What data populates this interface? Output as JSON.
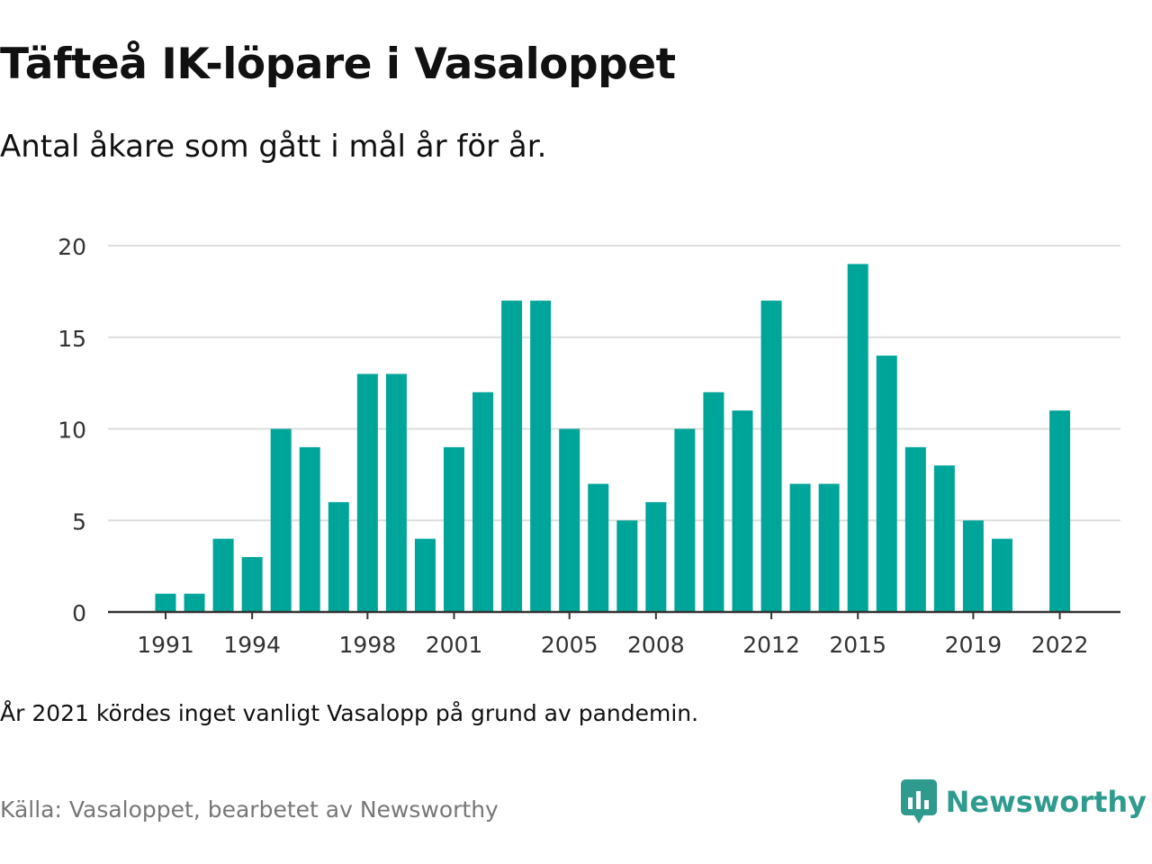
{
  "title": "Täfteå IK-löpare i Vasaloppet",
  "subtitle": "Antal åkare som gått i mål år för år.",
  "note": "År 2021 kördes inget vanligt Vasalopp på grund av pandemin.",
  "source": "Källa: Vasaloppet, bearbetet av Newsworthy",
  "brand": {
    "name": "Newsworthy",
    "logo_icon": "newsworthy-logo-icon"
  },
  "colors": {
    "bar": "#00a59a",
    "grid": "#dddddd",
    "axis": "#333333",
    "brand": "#2f9b8e"
  },
  "chart_data": {
    "type": "bar",
    "categories": [
      "1991",
      "1992",
      "1993",
      "1994",
      "1995",
      "1996",
      "1997",
      "1998",
      "1999",
      "2000",
      "2001",
      "2002",
      "2003",
      "2004",
      "2005",
      "2006",
      "2007",
      "2008",
      "2009",
      "2010",
      "2011",
      "2012",
      "2013",
      "2014",
      "2015",
      "2016",
      "2017",
      "2018",
      "2019",
      "2020",
      "2021",
      "2022"
    ],
    "values": [
      1,
      1,
      4,
      3,
      10,
      9,
      6,
      13,
      13,
      4,
      9,
      12,
      17,
      17,
      10,
      7,
      5,
      6,
      10,
      12,
      11,
      17,
      7,
      7,
      19,
      14,
      9,
      8,
      5,
      4,
      null,
      11
    ],
    "xticks": [
      "1991",
      "1994",
      "1998",
      "2001",
      "2005",
      "2008",
      "2012",
      "2015",
      "2019",
      "2022"
    ],
    "yticks": [
      0,
      5,
      10,
      15,
      20
    ],
    "ylim": [
      0,
      20
    ],
    "grid": true
  }
}
